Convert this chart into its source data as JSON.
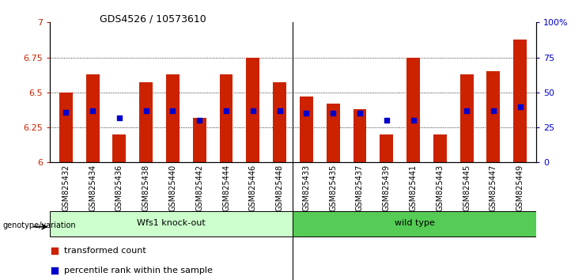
{
  "title": "GDS4526 / 10573610",
  "samples": [
    "GSM825432",
    "GSM825434",
    "GSM825436",
    "GSM825438",
    "GSM825440",
    "GSM825442",
    "GSM825444",
    "GSM825446",
    "GSM825448",
    "GSM825433",
    "GSM825435",
    "GSM825437",
    "GSM825439",
    "GSM825441",
    "GSM825443",
    "GSM825445",
    "GSM825447",
    "GSM825449"
  ],
  "bar_values": [
    6.5,
    6.63,
    6.2,
    6.57,
    6.63,
    6.32,
    6.63,
    6.75,
    6.57,
    6.47,
    6.42,
    6.38,
    6.2,
    6.75,
    6.2,
    6.63,
    6.65,
    6.88
  ],
  "dot_values": [
    6.36,
    6.37,
    6.32,
    6.37,
    6.37,
    6.3,
    6.37,
    6.37,
    6.37,
    6.35,
    6.35,
    6.35,
    6.3,
    6.3,
    null,
    6.37,
    6.37,
    6.4
  ],
  "dot_visible": [
    true,
    true,
    true,
    true,
    true,
    true,
    true,
    true,
    true,
    true,
    true,
    true,
    true,
    true,
    false,
    true,
    true,
    true
  ],
  "ylim": [
    6.0,
    7.0
  ],
  "yticks_left": [
    6.0,
    6.25,
    6.5,
    6.75,
    7.0
  ],
  "ytick_labels_left": [
    "6",
    "6.25",
    "6.5",
    "6.75",
    "7"
  ],
  "yticks_right": [
    0,
    25,
    50,
    75,
    100
  ],
  "ytick_labels_right": [
    "0",
    "25",
    "50",
    "75",
    "100%"
  ],
  "group1_label": "Wfs1 knock-out",
  "group2_label": "wild type",
  "group1_count": 9,
  "group2_count": 9,
  "bar_color": "#cc2200",
  "dot_color": "#0000cc",
  "group1_bg": "#ccffcc",
  "group2_bg": "#55cc55",
  "legend_items": [
    "transformed count",
    "percentile rank within the sample"
  ],
  "legend_colors": [
    "#cc2200",
    "#0000cc"
  ],
  "bar_width": 0.5,
  "dot_size": 20,
  "genotype_label": "genotype/variation"
}
